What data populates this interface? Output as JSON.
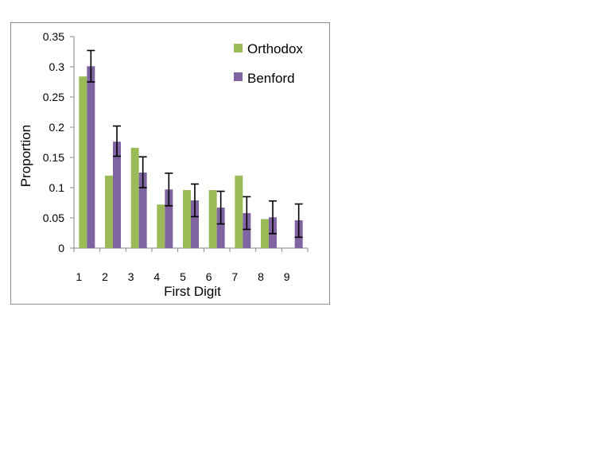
{
  "chart_data": {
    "type": "bar",
    "title": "",
    "xlabel": "First Digit",
    "ylabel": "Proportion",
    "categories": [
      "1",
      "2",
      "3",
      "4",
      "5",
      "6",
      "7",
      "8",
      "9"
    ],
    "ylim": [
      0,
      0.35
    ],
    "yticks": [
      "0",
      "0.05",
      "0.1",
      "0.15",
      "0.2",
      "0.25",
      "0.3",
      "0.35"
    ],
    "grid": false,
    "legend_position": "top-right",
    "series": [
      {
        "name": "Orthodox",
        "color": "#9bbb59",
        "values": [
          0.284,
          0.12,
          0.166,
          0.072,
          0.096,
          0.096,
          0.12,
          0.048,
          0.0
        ]
      },
      {
        "name": "Benford",
        "color": "#8064a2",
        "values": [
          0.301,
          0.176,
          0.125,
          0.097,
          0.079,
          0.067,
          0.058,
          0.051,
          0.046
        ],
        "error_low": [
          0.275,
          0.152,
          0.1,
          0.07,
          0.052,
          0.04,
          0.031,
          0.024,
          0.018
        ],
        "error_high": [
          0.327,
          0.202,
          0.151,
          0.124,
          0.106,
          0.094,
          0.085,
          0.078,
          0.073
        ]
      }
    ]
  }
}
